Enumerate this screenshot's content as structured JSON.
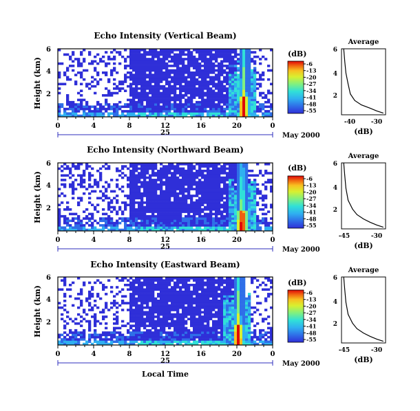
{
  "figure": {
    "xlabel": "Local Time",
    "x_ticks": [
      "0",
      "4",
      "8",
      "12",
      "16",
      "20",
      "0"
    ],
    "day_label": "25",
    "date_label": "May 2000",
    "ylabel": "Height (km)",
    "y_ticks": [
      "2",
      "4",
      "6"
    ],
    "colorbar": {
      "unit": "(dB)",
      "ticks": [
        "-6",
        "-13",
        "-20",
        "-27",
        "-34",
        "-41",
        "-48",
        "-55"
      ],
      "colors": [
        "#2f2fd8",
        "#2f6fe8",
        "#2fb0f0",
        "#30e0d8",
        "#80f080",
        "#d8f030",
        "#f8c020",
        "#f06010",
        "#e00808"
      ]
    },
    "average_title": "Average",
    "average_xlabel": "(dB)"
  },
  "chart_data": [
    {
      "type": "heatmap",
      "title": "Echo Intensity (Vertical Beam)",
      "xlabel": "",
      "ylabel": "Height (km)",
      "xlim": [
        0,
        24
      ],
      "ylim": [
        0,
        6
      ],
      "clim": [
        -55,
        -6
      ],
      "x_unit": "hours local time, 25 May 2000",
      "storm_peak": {
        "x_start": 20.2,
        "x_end": 21.4,
        "max_height": 6
      },
      "average_profile": {
        "xlabel": "(dB)",
        "x_ticks": [
          "-40",
          "-30"
        ],
        "xlim": [
          -47,
          -27
        ],
        "ylim": [
          0,
          6
        ],
        "x": [
          -46,
          -45.5,
          -45,
          -44,
          -43,
          -41,
          -38,
          -34,
          -31,
          -28
        ],
        "y": [
          6.0,
          4.8,
          3.8,
          2.8,
          1.9,
          1.3,
          0.9,
          0.6,
          0.35,
          0.15
        ]
      }
    },
    {
      "type": "heatmap",
      "title": "Echo Intensity (Northward Beam)",
      "xlabel": "",
      "ylabel": "Height (km)",
      "xlim": [
        0,
        24
      ],
      "ylim": [
        0,
        6
      ],
      "clim": [
        -55,
        -6
      ],
      "x_unit": "hours local time, 25 May 2000",
      "storm_peak": {
        "x_start": 20.0,
        "x_end": 21.3,
        "max_height": 6
      },
      "average_profile": {
        "xlabel": "(dB)",
        "x_ticks": [
          "-45",
          "-30"
        ],
        "xlim": [
          -47,
          -27
        ],
        "ylim": [
          0,
          6
        ],
        "x": [
          -46,
          -45.6,
          -45,
          -44,
          -42,
          -40,
          -37,
          -34,
          -31,
          -28
        ],
        "y": [
          6.0,
          5.0,
          3.7,
          2.6,
          1.8,
          1.3,
          0.9,
          0.6,
          0.35,
          0.15
        ]
      }
    },
    {
      "type": "heatmap",
      "title": "Echo Intensity (Eastward Beam)",
      "xlabel": "Local Time",
      "ylabel": "Height (km)",
      "xlim": [
        0,
        24
      ],
      "ylim": [
        0,
        6
      ],
      "clim": [
        -55,
        -6
      ],
      "x_unit": "hours local time, 25 May 2000",
      "storm_peak": {
        "x_start": 19.6,
        "x_end": 20.8,
        "max_height": 6
      },
      "average_profile": {
        "xlabel": "(dB)",
        "x_ticks": [
          "-45",
          "-30"
        ],
        "xlim": [
          -47,
          -27
        ],
        "ylim": [
          0,
          6
        ],
        "x": [
          -46,
          -45.6,
          -45,
          -44,
          -42,
          -40,
          -37,
          -34,
          -31,
          -28
        ],
        "y": [
          6.0,
          5.0,
          3.7,
          2.6,
          1.8,
          1.3,
          0.9,
          0.6,
          0.35,
          0.15
        ]
      }
    }
  ]
}
